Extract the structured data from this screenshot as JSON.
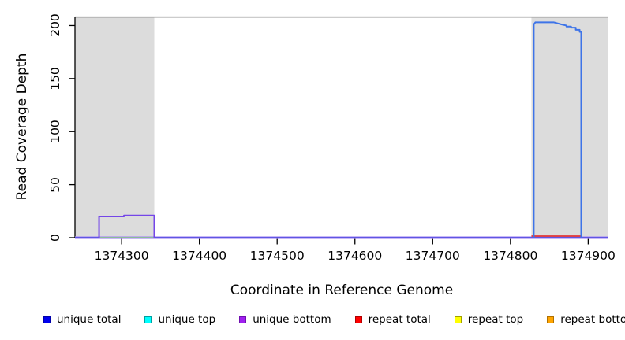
{
  "figure": {
    "xlabel": "Coordinate in Reference Genome",
    "ylabel": "Read Coverage Depth"
  },
  "chart_data": {
    "type": "line",
    "title": "",
    "xlabel": "Coordinate in Reference Genome",
    "ylabel": "Read Coverage Depth",
    "xlim": [
      1374240,
      1374926
    ],
    "ylim": [
      0,
      208.5
    ],
    "x_ticks": [
      1374300,
      1374400,
      1374500,
      1374600,
      1374700,
      1374800,
      1374900
    ],
    "y_ticks": [
      0,
      50,
      100,
      150,
      200
    ],
    "grid": false,
    "legend_position": "bottom",
    "shaded_regions": [
      {
        "name": "repeat-region-left",
        "x0": 1374240,
        "x1": 1374342,
        "color": "#dcdcdc"
      },
      {
        "name": "repeat-region-right",
        "x0": 1374827,
        "x1": 1374926,
        "color": "#dcdcdc"
      }
    ],
    "reference_line": {
      "y": 208,
      "color": "#999999"
    },
    "series": [
      {
        "name": "unique-bottom-baseline",
        "color": "#a88cf2",
        "width": 3.2,
        "points": [
          [
            1374240,
            0
          ],
          [
            1374926,
            0
          ]
        ]
      },
      {
        "name": "unique-total-baseline",
        "color": "#4545e0",
        "width": 1.5,
        "points": [
          [
            1374240,
            0
          ],
          [
            1374926,
            0
          ]
        ]
      },
      {
        "name": "top-strand-zero-segment",
        "color": "#8cc88c",
        "width": 1.8,
        "points": [
          [
            1374271,
            0
          ],
          [
            1374342,
            0
          ]
        ]
      },
      {
        "name": "repeat-total",
        "color": "#e23535",
        "width": 1.8,
        "points": [
          [
            1374827,
            1.5
          ],
          [
            1374892,
            1.5
          ]
        ]
      },
      {
        "name": "unique-coverage-left-bump",
        "color": "#7446e8",
        "width": 2,
        "points": [
          [
            1374271,
            0
          ],
          [
            1374271,
            20
          ],
          [
            1374303,
            20
          ],
          [
            1374303,
            21
          ],
          [
            1374342,
            21
          ],
          [
            1374342,
            0
          ]
        ]
      },
      {
        "name": "unique-coverage-right-block",
        "color": "#3e74e8",
        "width": 2,
        "points": [
          [
            1374830,
            0
          ],
          [
            1374830,
            201
          ],
          [
            1374832,
            203
          ],
          [
            1374856,
            203
          ],
          [
            1374866,
            201
          ],
          [
            1374872,
            200
          ],
          [
            1374872,
            199
          ],
          [
            1374878,
            199
          ],
          [
            1374878,
            198
          ],
          [
            1374884,
            198
          ],
          [
            1374884,
            196
          ],
          [
            1374889,
            196
          ],
          [
            1374889,
            194
          ],
          [
            1374891,
            194
          ],
          [
            1374891,
            0
          ]
        ]
      }
    ],
    "legend": [
      {
        "label": "unique total",
        "color": "#0000ee",
        "border": "#0000aa"
      },
      {
        "label": "unique top",
        "color": "#00ffff",
        "border": "#00a0a0"
      },
      {
        "label": "unique bottom",
        "color": "#a020f0",
        "border": "#7010b0"
      },
      {
        "label": "repeat total",
        "color": "#ff0000",
        "border": "#b00000"
      },
      {
        "label": "repeat top",
        "color": "#ffff00",
        "border": "#a0a000"
      },
      {
        "label": "repeat bottom",
        "color": "#ffa500",
        "border": "#b07000"
      }
    ]
  }
}
